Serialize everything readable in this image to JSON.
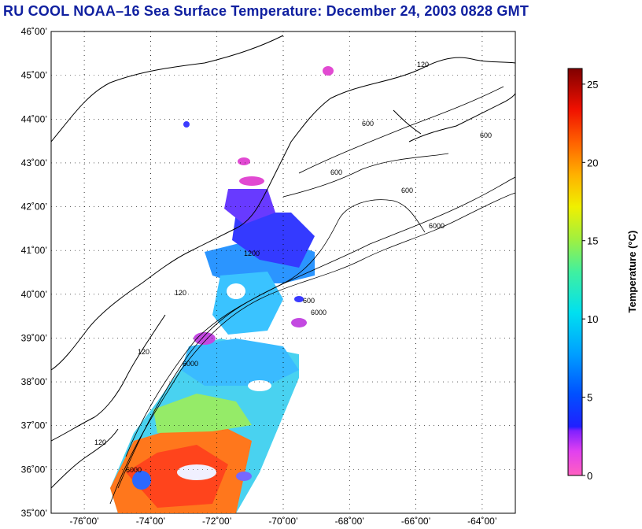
{
  "title": "RU COOL  NOAA–16  Sea Surface Temperature:  December 24, 2003 0828 GMT",
  "map": {
    "lat_labels": [
      "46˚00’",
      "45˚00’",
      "44˚00’",
      "43˚00’",
      "42˚00’",
      "41˚00’",
      "40˚00’",
      "39˚00’",
      "38˚00’",
      "37˚00’",
      "36˚00’",
      "35˚00’"
    ],
    "lon_labels": [
      "-76˚00’",
      "-74˚00’",
      "-72˚00’",
      "-70˚00’",
      "-68˚00’",
      "-66˚00’",
      "-64˚00’"
    ],
    "lat_range": [
      35,
      46
    ],
    "lon_range": [
      -77,
      -63
    ],
    "contour_labels": [
      "120",
      "600",
      "6000",
      "1200"
    ]
  },
  "colorbar": {
    "label": "Temperature (°C)",
    "ticks": [
      "0",
      "5",
      "10",
      "15",
      "20",
      "25"
    ],
    "range": [
      0,
      26
    ]
  },
  "colors": {
    "title": "#1020a0"
  }
}
